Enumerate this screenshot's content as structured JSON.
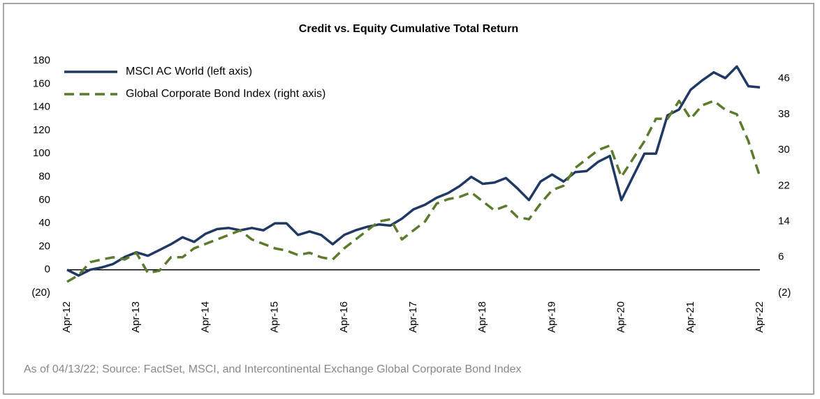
{
  "chart_data": {
    "type": "line",
    "title": "Credit vs. Equity Cumulative Total Return",
    "footnote": "As of 04/13/22; Source: FactSet, MSCI, and Intercontinental Exchange Global Corporate Bond Index",
    "categories": [
      "Apr-12",
      null,
      null,
      null,
      null,
      null,
      "Apr-13",
      null,
      null,
      null,
      null,
      null,
      "Apr-14",
      null,
      null,
      null,
      null,
      null,
      "Apr-15",
      null,
      null,
      null,
      null,
      null,
      "Apr-16",
      null,
      null,
      null,
      null,
      null,
      "Apr-17",
      null,
      null,
      null,
      null,
      null,
      "Apr-18",
      null,
      null,
      null,
      null,
      null,
      "Apr-19",
      null,
      null,
      null,
      null,
      null,
      "Apr-20",
      null,
      null,
      null,
      null,
      null,
      "Apr-21",
      null,
      null,
      null,
      null,
      null,
      "Apr-22"
    ],
    "series": [
      {
        "name": "MSCI AC World (left axis)",
        "color": "#1f3864",
        "axis": "y",
        "dash": false,
        "values": [
          0,
          -5,
          0,
          2,
          5,
          11,
          15,
          12,
          17,
          22,
          28,
          24,
          31,
          35,
          36,
          34,
          36,
          34,
          40,
          40,
          30,
          33,
          30,
          22,
          30,
          34,
          37,
          39,
          38,
          44,
          52,
          56,
          62,
          66,
          72,
          80,
          74,
          75,
          79,
          70,
          60,
          76,
          82,
          76,
          84,
          85,
          93,
          98,
          60,
          80,
          100,
          100,
          133,
          138,
          155,
          163,
          170,
          165,
          175,
          158,
          157
        ]
      },
      {
        "name": "Global Corporate Bond Index (right axis)",
        "color": "#5b7a2c",
        "axis": "y2",
        "dash": true,
        "values": [
          0.5,
          2,
          4.9,
          5.5,
          6,
          5.5,
          7,
          2.5,
          3,
          6,
          6,
          8,
          9,
          10,
          11,
          12,
          10,
          9,
          8,
          7.5,
          6.5,
          7,
          6,
          5.5,
          8,
          10,
          12,
          14,
          14.5,
          10,
          12,
          14,
          18,
          19,
          19.5,
          20.5,
          18.5,
          16.5,
          17.5,
          15,
          14.5,
          18,
          21,
          22,
          26,
          28,
          30,
          31,
          24,
          28,
          32,
          37,
          37,
          41,
          37,
          40,
          41,
          39,
          38,
          32,
          24
        ]
      }
    ],
    "ylim": [
      -20,
      180
    ],
    "yticks": [
      {
        "value": -20,
        "label": "(20)"
      },
      0,
      20,
      40,
      60,
      80,
      100,
      120,
      140,
      160,
      180
    ],
    "y2lim": [
      -2,
      50
    ],
    "y2ticks": [
      {
        "value": -2,
        "label": "(2)"
      },
      6,
      14,
      22,
      30,
      38,
      46
    ],
    "legend": "upper left"
  }
}
